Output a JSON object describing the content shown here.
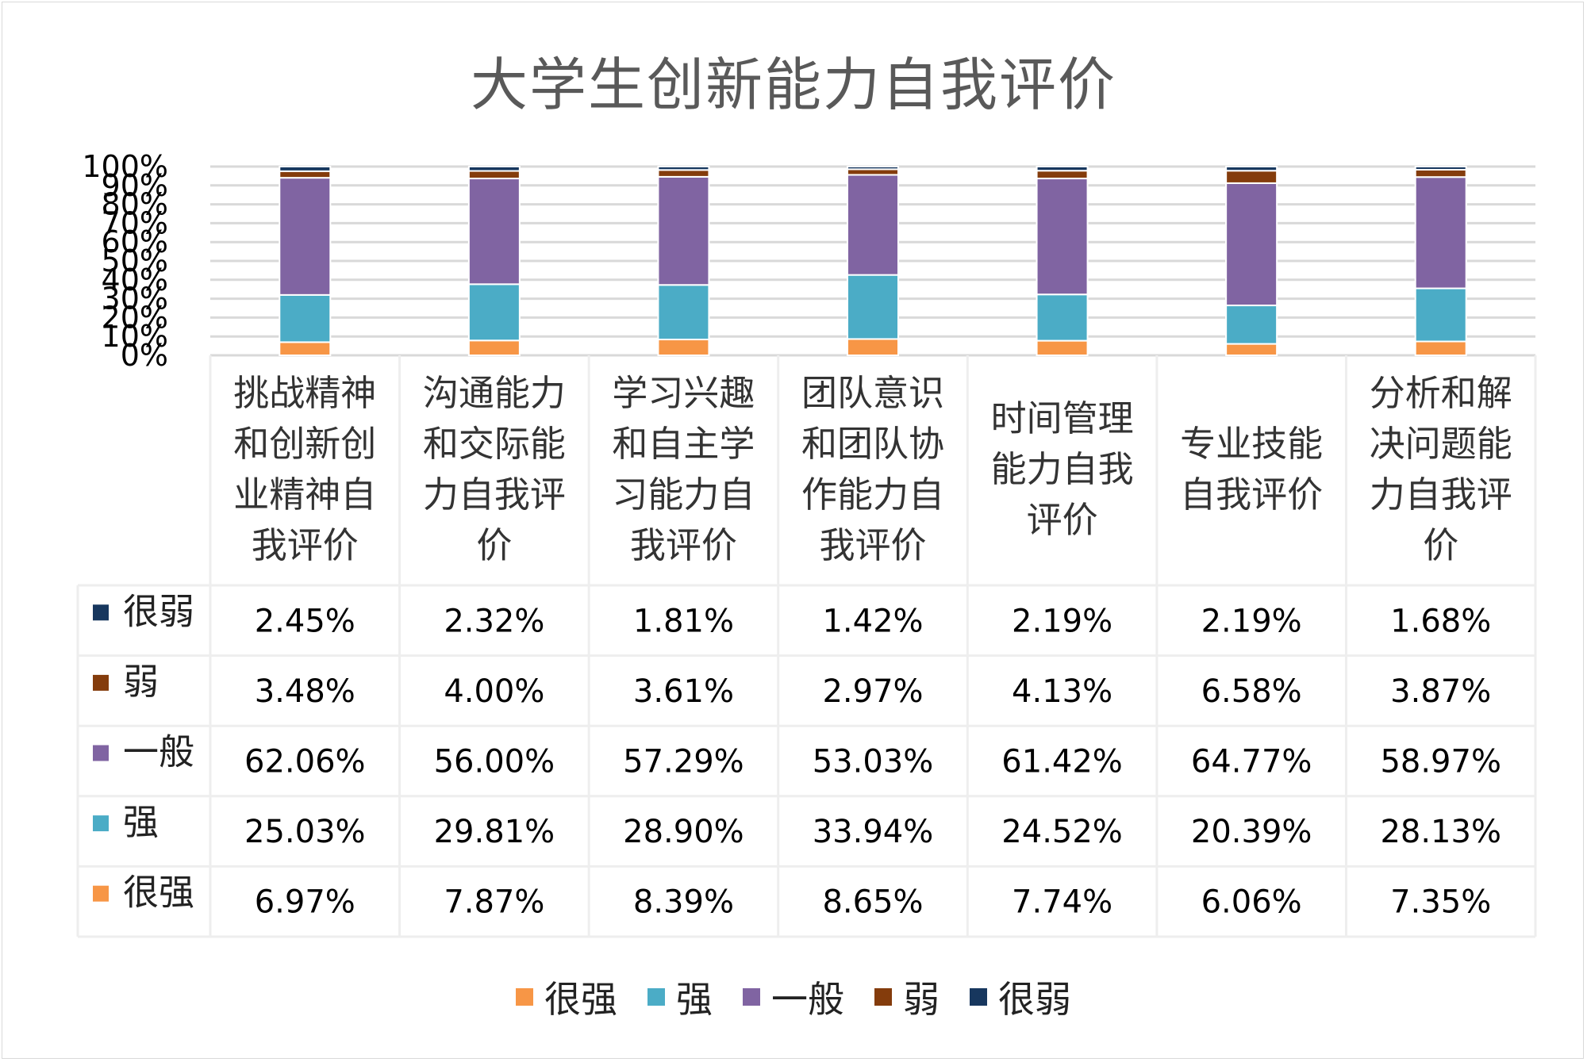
{
  "chart_data": {
    "type": "bar",
    "stacked": true,
    "percent_stacked": true,
    "title": "大学生创新能力自我评价",
    "categories": [
      "挑战精神和创新创业精神自我评价",
      "沟通能力和交际能力自我评价",
      "学习兴趣和自主学习能力自我评价",
      "团队意识和团队协作能力自我评价",
      "时间管理能力自我评价",
      "专业技能自我评价",
      "分析和解决问题能力自我评价"
    ],
    "category_lines": [
      [
        "挑战精神",
        "和创新创",
        "业精神自",
        "我评价"
      ],
      [
        "沟通能力",
        "和交际能",
        "力自我评",
        "价"
      ],
      [
        "学习兴趣",
        "和自主学",
        "习能力自",
        "我评价"
      ],
      [
        "团队意识",
        "和团队协",
        "作能力自",
        "我评价"
      ],
      [
        "时间管理",
        "能力自我",
        "评价"
      ],
      [
        "专业技能",
        "自我评价"
      ],
      [
        "分析和解",
        "决问题能",
        "力自我评",
        "价"
      ]
    ],
    "stack_order": [
      "很强",
      "强",
      "一般",
      "弱",
      "很弱"
    ],
    "table_order": [
      "很弱",
      "弱",
      "一般",
      "强",
      "很强"
    ],
    "series": [
      {
        "name": "很强",
        "color": "#F79646",
        "values": [
          6.97,
          7.87,
          8.39,
          8.65,
          7.74,
          6.06,
          7.35
        ],
        "labels": [
          "6.97%",
          "7.87%",
          "8.39%",
          "8.65%",
          "7.74%",
          "6.06%",
          "7.35%"
        ]
      },
      {
        "name": "强",
        "color": "#4BACC6",
        "values": [
          25.03,
          29.81,
          28.9,
          33.94,
          24.52,
          20.39,
          28.13
        ],
        "labels": [
          "25.03%",
          "29.81%",
          "28.90%",
          "33.94%",
          "24.52%",
          "20.39%",
          "28.13%"
        ]
      },
      {
        "name": "一般",
        "color": "#8064A2",
        "values": [
          62.06,
          56.0,
          57.29,
          53.03,
          61.42,
          64.77,
          58.97
        ],
        "labels": [
          "62.06%",
          "56.00%",
          "57.29%",
          "53.03%",
          "61.42%",
          "64.77%",
          "58.97%"
        ]
      },
      {
        "name": "弱",
        "color": "#843C0C",
        "values": [
          3.48,
          4.0,
          3.61,
          2.97,
          4.13,
          6.58,
          3.87
        ],
        "labels": [
          "3.48%",
          "4.00%",
          "3.61%",
          "2.97%",
          "4.13%",
          "6.58%",
          "3.87%"
        ]
      },
      {
        "name": "很弱",
        "color": "#17375E",
        "values": [
          2.45,
          2.32,
          1.81,
          1.42,
          2.19,
          2.19,
          1.68
        ],
        "labels": [
          "2.45%",
          "2.32%",
          "1.81%",
          "1.42%",
          "2.19%",
          "2.19%",
          "1.68%"
        ]
      }
    ],
    "ylim": [
      0,
      100
    ],
    "yticks": [
      "0%",
      "10%",
      "20%",
      "30%",
      "40%",
      "50%",
      "60%",
      "70%",
      "80%",
      "90%",
      "100%"
    ],
    "ytick_values": [
      0,
      10,
      20,
      30,
      40,
      50,
      60,
      70,
      80,
      90,
      100
    ],
    "grid": true,
    "legend_position": "bottom",
    "data_table": true
  }
}
